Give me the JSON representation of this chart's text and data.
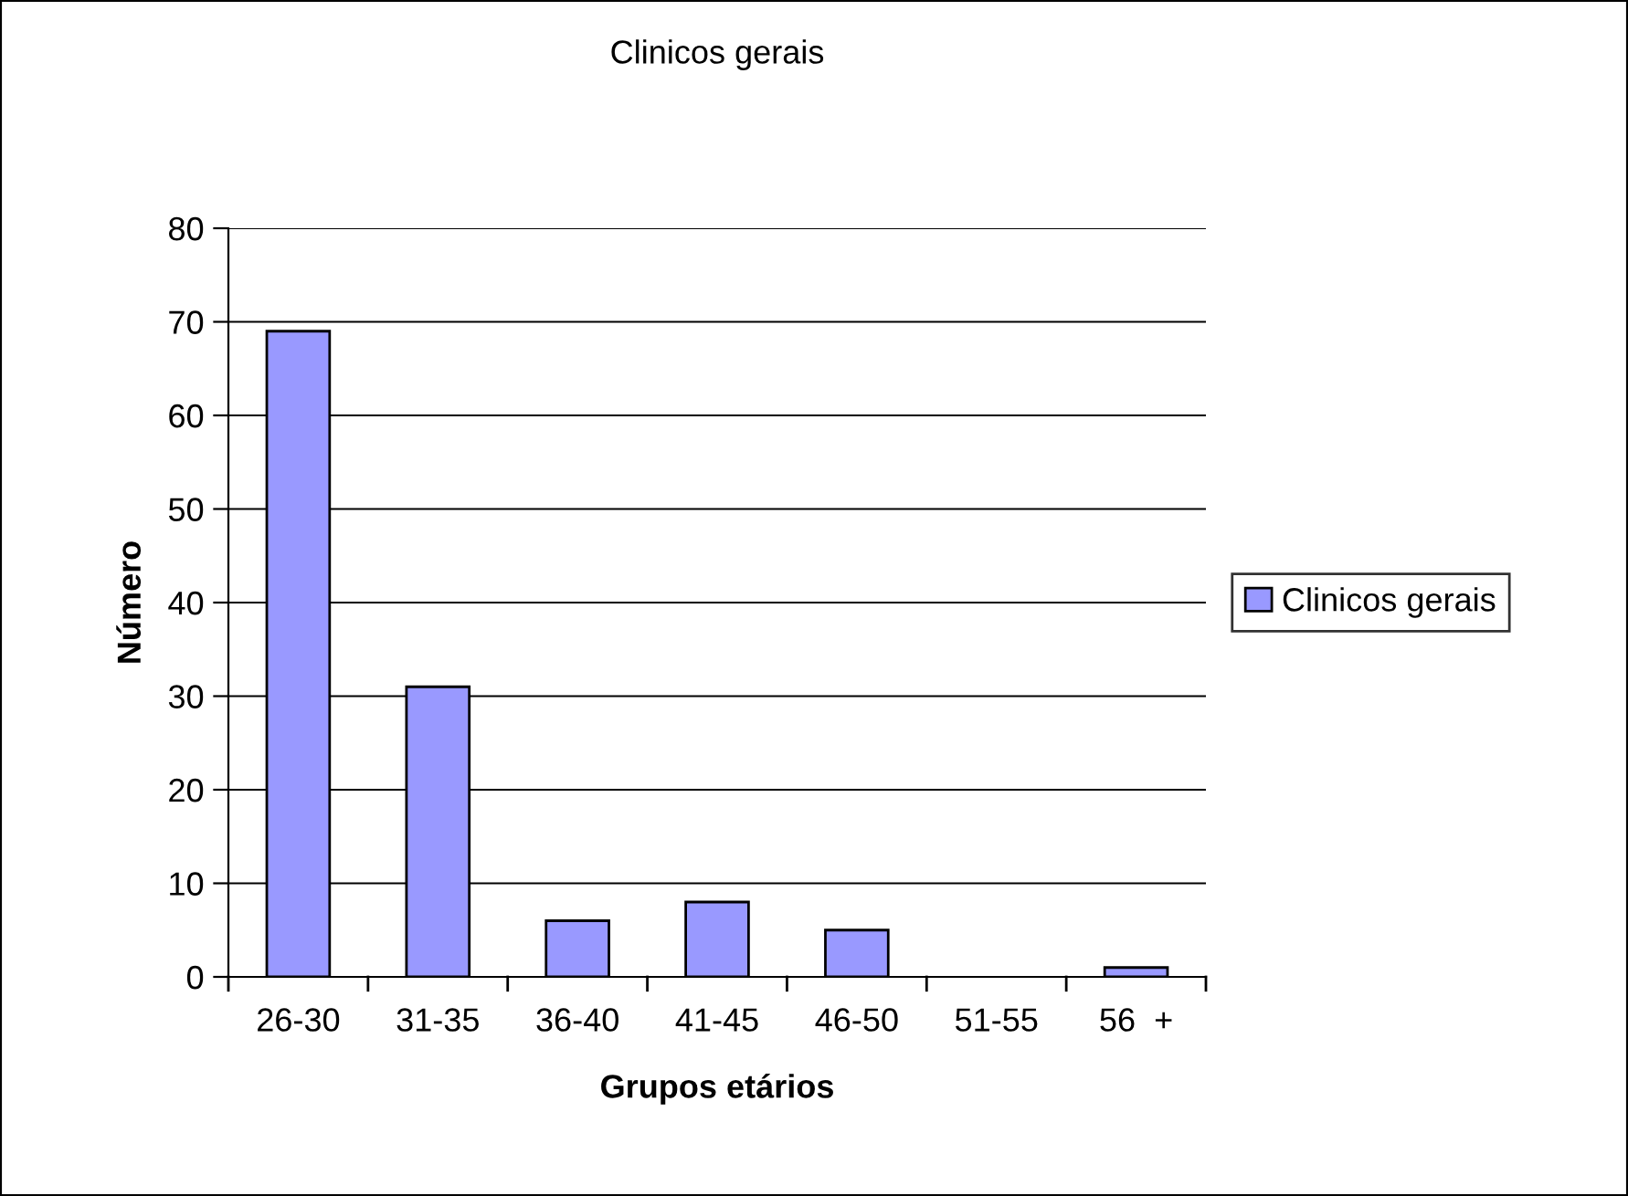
{
  "chart_data": {
    "type": "bar",
    "title": "Clinicos gerais",
    "xlabel": "Grupos etários",
    "ylabel": "Número",
    "categories": [
      "26-30",
      "31-35",
      "36-40",
      "41-45",
      "46-50",
      "51-55",
      "56  +"
    ],
    "series": [
      {
        "name": "Clinicos gerais",
        "color": "#9999ff",
        "values": [
          69,
          31,
          6,
          8,
          5,
          0,
          1
        ]
      }
    ],
    "ylim": [
      0,
      80
    ],
    "yticks": [
      0,
      10,
      20,
      30,
      40,
      50,
      60,
      70,
      80
    ],
    "grid": "y",
    "legend": "right"
  }
}
